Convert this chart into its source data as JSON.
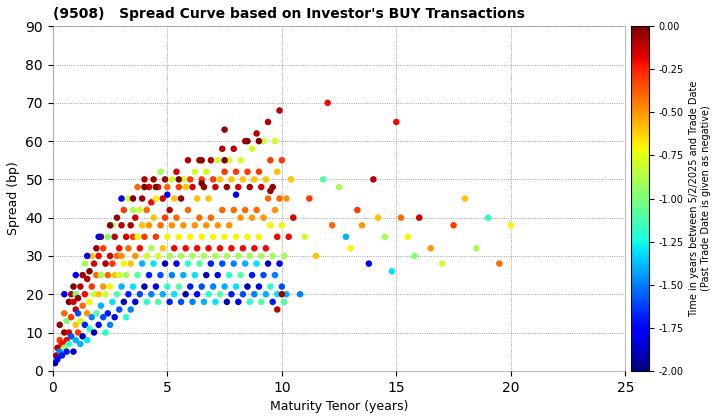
{
  "title": "(9508)   Spread Curve based on Investor's BUY Transactions",
  "xlabel": "Maturity Tenor (years)",
  "ylabel": "Spread (bp)",
  "xlim": [
    0,
    25
  ],
  "ylim": [
    0,
    90
  ],
  "xticks": [
    0,
    5,
    10,
    15,
    20,
    25
  ],
  "yticks": [
    0,
    10,
    20,
    30,
    40,
    50,
    60,
    70,
    80,
    90
  ],
  "colorbar_label_line1": "Time in years between 5/2/2025 and Trade Date",
  "colorbar_label_line2": "(Past Trade Date is given as negative)",
  "colorbar_ticks": [
    0.0,
    -0.25,
    -0.5,
    -0.75,
    -1.0,
    -1.25,
    -1.5,
    -1.75,
    -2.0
  ],
  "cmap": "jet",
  "vmin": -2.0,
  "vmax": 0.0,
  "marker_size": 22,
  "background_color": "#ffffff",
  "grid_color": "#888888",
  "points": [
    [
      0.1,
      2,
      -1.9
    ],
    [
      0.15,
      4,
      -0.05
    ],
    [
      0.2,
      3,
      -1.8
    ],
    [
      0.2,
      6,
      -0.1
    ],
    [
      0.3,
      5,
      -1.5
    ],
    [
      0.3,
      8,
      -0.3
    ],
    [
      0.3,
      12,
      -0.05
    ],
    [
      0.4,
      4,
      -1.7
    ],
    [
      0.4,
      7,
      -0.2
    ],
    [
      0.5,
      6,
      -0.9
    ],
    [
      0.5,
      10,
      -0.05
    ],
    [
      0.5,
      15,
      -0.4
    ],
    [
      0.6,
      5,
      -1.7
    ],
    [
      0.6,
      8,
      -0.2
    ],
    [
      0.6,
      13,
      -1.0
    ],
    [
      0.7,
      10,
      -0.15
    ],
    [
      0.7,
      18,
      -0.0
    ],
    [
      0.7,
      7,
      -1.2
    ],
    [
      0.8,
      14,
      -0.3
    ],
    [
      0.8,
      20,
      -0.1
    ],
    [
      0.8,
      9,
      -1.6
    ],
    [
      0.9,
      5,
      -1.9
    ],
    [
      0.9,
      18,
      -0.15
    ],
    [
      0.9,
      22,
      -0.0
    ],
    [
      1.0,
      8,
      -1.4
    ],
    [
      1.0,
      12,
      -0.6
    ],
    [
      1.0,
      16,
      -0.1
    ],
    [
      1.0,
      20,
      -1.0
    ],
    [
      1.1,
      10,
      -0.3
    ],
    [
      1.1,
      15,
      -1.6
    ],
    [
      1.1,
      19,
      -0.05
    ],
    [
      1.2,
      7,
      -1.4
    ],
    [
      1.2,
      13,
      -0.8
    ],
    [
      1.2,
      22,
      -0.1
    ],
    [
      1.3,
      9,
      -1.9
    ],
    [
      1.3,
      17,
      -0.4
    ],
    [
      1.3,
      25,
      -0.05
    ],
    [
      1.4,
      12,
      -1.7
    ],
    [
      1.4,
      20,
      -0.2
    ],
    [
      1.4,
      28,
      -0.9
    ],
    [
      1.5,
      8,
      -1.3
    ],
    [
      1.5,
      15,
      -0.5
    ],
    [
      1.5,
      24,
      -0.1
    ],
    [
      1.6,
      11,
      -1.2
    ],
    [
      1.6,
      18,
      -0.7
    ],
    [
      1.6,
      26,
      -0.0
    ],
    [
      1.7,
      14,
      -1.5
    ],
    [
      1.7,
      22,
      -0.3
    ],
    [
      1.7,
      30,
      -0.6
    ],
    [
      1.8,
      10,
      -1.9
    ],
    [
      1.8,
      20,
      -0.8
    ],
    [
      1.8,
      28,
      -0.15
    ],
    [
      1.9,
      15,
      -1.1
    ],
    [
      1.9,
      25,
      -0.4
    ],
    [
      1.9,
      32,
      -0.05
    ],
    [
      2.0,
      12,
      -1.8
    ],
    [
      2.0,
      20,
      -0.6
    ],
    [
      2.0,
      30,
      -0.2
    ],
    [
      2.1,
      17,
      -1.4
    ],
    [
      2.1,
      25,
      -0.9
    ],
    [
      2.1,
      35,
      -0.0
    ],
    [
      2.2,
      14,
      -1.6
    ],
    [
      2.2,
      22,
      -0.5
    ],
    [
      2.2,
      32,
      -0.3
    ],
    [
      2.3,
      10,
      -1.2
    ],
    [
      2.3,
      20,
      -0.8
    ],
    [
      2.3,
      28,
      -0.1
    ],
    [
      2.4,
      15,
      -1.7
    ],
    [
      2.4,
      25,
      -0.4
    ],
    [
      2.4,
      35,
      -1.0
    ],
    [
      2.5,
      12,
      -1.5
    ],
    [
      2.5,
      22,
      -0.7
    ],
    [
      2.5,
      30,
      -0.15
    ],
    [
      2.6,
      18,
      -1.3
    ],
    [
      2.6,
      28,
      -0.3
    ],
    [
      2.6,
      38,
      -0.9
    ],
    [
      2.7,
      14,
      -1.8
    ],
    [
      2.7,
      25,
      -0.6
    ],
    [
      2.7,
      35,
      -0.1
    ],
    [
      2.8,
      20,
      -1.1
    ],
    [
      2.8,
      30,
      -0.4
    ],
    [
      2.8,
      40,
      -0.05
    ],
    [
      2.9,
      16,
      -1.6
    ],
    [
      2.9,
      25,
      -0.8
    ],
    [
      2.9,
      32,
      -0.2
    ],
    [
      3.0,
      22,
      -1.4
    ],
    [
      3.0,
      30,
      -0.5
    ],
    [
      3.0,
      38,
      -0.1
    ],
    [
      3.1,
      18,
      -1.9
    ],
    [
      3.1,
      28,
      -0.7
    ],
    [
      3.1,
      42,
      -0.3
    ],
    [
      3.2,
      14,
      -1.2
    ],
    [
      3.2,
      25,
      -0.9
    ],
    [
      3.2,
      35,
      -0.15
    ],
    [
      3.3,
      20,
      -1.7
    ],
    [
      3.3,
      32,
      -0.4
    ],
    [
      3.3,
      45,
      -0.8
    ],
    [
      3.4,
      16,
      -1.5
    ],
    [
      3.4,
      28,
      -0.6
    ],
    [
      3.4,
      38,
      -0.1
    ],
    [
      3.5,
      22,
      -1.3
    ],
    [
      3.5,
      35,
      -0.3
    ],
    [
      3.5,
      42,
      -0.9
    ],
    [
      3.6,
      18,
      -1.8
    ],
    [
      3.6,
      30,
      -0.5
    ],
    [
      3.6,
      40,
      -0.15
    ],
    [
      3.7,
      25,
      -1.1
    ],
    [
      3.7,
      35,
      -0.7
    ],
    [
      3.7,
      48,
      -0.4
    ],
    [
      3.8,
      20,
      -1.6
    ],
    [
      3.8,
      32,
      -0.2
    ],
    [
      3.8,
      42,
      -0.8
    ],
    [
      3.9,
      28,
      -1.4
    ],
    [
      3.9,
      38,
      -0.6
    ],
    [
      3.9,
      45,
      -0.05
    ],
    [
      4.0,
      22,
      -1.9
    ],
    [
      4.0,
      35,
      -0.3
    ],
    [
      4.0,
      50,
      -0.1
    ],
    [
      4.1,
      18,
      -1.2
    ],
    [
      4.1,
      30,
      -0.8
    ],
    [
      4.1,
      42,
      -0.4
    ],
    [
      4.2,
      25,
      -1.7
    ],
    [
      4.2,
      38,
      -0.5
    ],
    [
      4.2,
      48,
      -0.15
    ],
    [
      4.3,
      20,
      -1.5
    ],
    [
      4.3,
      32,
      -0.9
    ],
    [
      4.3,
      44,
      -0.2
    ],
    [
      4.4,
      28,
      -1.3
    ],
    [
      4.4,
      40,
      -0.6
    ],
    [
      4.4,
      50,
      -0.05
    ],
    [
      4.5,
      22,
      -1.8
    ],
    [
      4.5,
      35,
      -0.3
    ],
    [
      4.5,
      45,
      -0.7
    ],
    [
      4.6,
      18,
      -1.1
    ],
    [
      4.6,
      30,
      -0.8
    ],
    [
      4.6,
      48,
      -0.2
    ],
    [
      4.7,
      25,
      -1.6
    ],
    [
      4.7,
      38,
      -0.4
    ],
    [
      4.7,
      52,
      -0.9
    ],
    [
      4.8,
      20,
      -1.4
    ],
    [
      4.8,
      32,
      -0.6
    ],
    [
      4.8,
      45,
      -0.15
    ],
    [
      4.9,
      28,
      -1.9
    ],
    [
      4.9,
      40,
      -0.3
    ],
    [
      4.9,
      50,
      -0.05
    ],
    [
      5.0,
      22,
      -1.2
    ],
    [
      5.0,
      35,
      -0.7
    ],
    [
      5.0,
      48,
      -0.4
    ],
    [
      5.1,
      18,
      -1.7
    ],
    [
      5.1,
      30,
      -0.9
    ],
    [
      5.1,
      42,
      -0.1
    ],
    [
      5.2,
      25,
      -1.5
    ],
    [
      5.2,
      38,
      -0.5
    ],
    [
      5.2,
      50,
      -0.8
    ],
    [
      5.3,
      20,
      -1.3
    ],
    [
      5.3,
      32,
      -0.2
    ],
    [
      5.3,
      45,
      -0.6
    ],
    [
      5.4,
      28,
      -1.8
    ],
    [
      5.4,
      40,
      -0.4
    ],
    [
      5.4,
      52,
      -0.15
    ],
    [
      5.5,
      22,
      -1.1
    ],
    [
      5.5,
      35,
      -0.7
    ],
    [
      5.5,
      48,
      -0.3
    ],
    [
      5.6,
      18,
      -1.6
    ],
    [
      5.6,
      30,
      -0.9
    ],
    [
      5.6,
      45,
      -0.05
    ],
    [
      5.7,
      25,
      -1.4
    ],
    [
      5.7,
      38,
      -0.5
    ],
    [
      5.7,
      50,
      -0.8
    ],
    [
      5.8,
      20,
      -1.9
    ],
    [
      5.8,
      32,
      -0.2
    ],
    [
      5.8,
      48,
      -0.6
    ],
    [
      5.9,
      28,
      -1.2
    ],
    [
      5.9,
      42,
      -0.4
    ],
    [
      5.9,
      55,
      -0.1
    ],
    [
      6.0,
      22,
      -1.7
    ],
    [
      6.0,
      35,
      -0.7
    ],
    [
      6.0,
      50,
      -0.3
    ],
    [
      6.1,
      18,
      -1.5
    ],
    [
      6.1,
      30,
      -0.9
    ],
    [
      6.1,
      48,
      -0.15
    ],
    [
      6.2,
      25,
      -1.3
    ],
    [
      6.2,
      38,
      -0.5
    ],
    [
      6.2,
      52,
      -0.8
    ],
    [
      6.3,
      20,
      -1.8
    ],
    [
      6.3,
      32,
      -0.2
    ],
    [
      6.3,
      45,
      -0.6
    ],
    [
      6.4,
      28,
      -1.1
    ],
    [
      6.4,
      40,
      -0.4
    ],
    [
      6.4,
      55,
      -0.1
    ],
    [
      6.5,
      22,
      -1.6
    ],
    [
      6.5,
      35,
      -0.7
    ],
    [
      6.5,
      50,
      -0.3
    ],
    [
      6.6,
      18,
      -1.4
    ],
    [
      6.6,
      30,
      -0.9
    ],
    [
      6.6,
      48,
      -0.05
    ],
    [
      6.7,
      25,
      -1.9
    ],
    [
      6.7,
      38,
      -0.5
    ],
    [
      6.7,
      52,
      -0.8
    ],
    [
      6.8,
      20,
      -1.2
    ],
    [
      6.8,
      32,
      -0.2
    ],
    [
      6.8,
      45,
      -0.6
    ],
    [
      6.9,
      28,
      -1.7
    ],
    [
      6.9,
      40,
      -0.4
    ],
    [
      6.9,
      55,
      -0.1
    ],
    [
      7.0,
      22,
      -1.5
    ],
    [
      7.0,
      35,
      -0.7
    ],
    [
      7.0,
      50,
      -0.3
    ],
    [
      7.1,
      18,
      -1.3
    ],
    [
      7.1,
      30,
      -0.9
    ],
    [
      7.1,
      48,
      -0.15
    ],
    [
      7.2,
      25,
      -1.8
    ],
    [
      7.2,
      38,
      -0.5
    ],
    [
      7.2,
      55,
      -0.8
    ],
    [
      7.3,
      20,
      -1.1
    ],
    [
      7.3,
      32,
      -0.2
    ],
    [
      7.3,
      50,
      -0.6
    ],
    [
      7.4,
      28,
      -1.6
    ],
    [
      7.4,
      42,
      -0.4
    ],
    [
      7.4,
      58,
      -0.1
    ],
    [
      7.5,
      22,
      -1.4
    ],
    [
      7.5,
      35,
      -0.7
    ],
    [
      7.5,
      52,
      -0.3
    ],
    [
      7.6,
      18,
      -1.9
    ],
    [
      7.6,
      30,
      -0.9
    ],
    [
      7.6,
      48,
      -0.05
    ],
    [
      7.7,
      25,
      -1.2
    ],
    [
      7.7,
      38,
      -0.5
    ],
    [
      7.7,
      55,
      -0.8
    ],
    [
      7.8,
      20,
      -1.7
    ],
    [
      7.8,
      32,
      -0.2
    ],
    [
      7.8,
      50,
      -0.6
    ],
    [
      7.9,
      28,
      -1.5
    ],
    [
      7.9,
      42,
      -0.4
    ],
    [
      7.9,
      58,
      -0.1
    ],
    [
      8.0,
      22,
      -1.3
    ],
    [
      8.0,
      35,
      -0.7
    ],
    [
      8.0,
      52,
      -0.3
    ],
    [
      8.1,
      18,
      -1.8
    ],
    [
      8.1,
      30,
      -0.9
    ],
    [
      8.1,
      48,
      -0.15
    ],
    [
      8.2,
      25,
      -1.1
    ],
    [
      8.2,
      40,
      -0.5
    ],
    [
      8.2,
      55,
      -0.8
    ],
    [
      8.3,
      20,
      -1.6
    ],
    [
      8.3,
      32,
      -0.2
    ],
    [
      8.3,
      50,
      -0.6
    ],
    [
      8.4,
      28,
      -1.4
    ],
    [
      8.4,
      42,
      -0.4
    ],
    [
      8.4,
      60,
      -0.1
    ],
    [
      8.5,
      22,
      -1.9
    ],
    [
      8.5,
      35,
      -0.7
    ],
    [
      8.5,
      52,
      -0.3
    ],
    [
      8.6,
      18,
      -1.2
    ],
    [
      8.6,
      30,
      -0.9
    ],
    [
      8.6,
      48,
      -0.05
    ],
    [
      8.7,
      25,
      -1.7
    ],
    [
      8.7,
      40,
      -0.5
    ],
    [
      8.7,
      58,
      -0.8
    ],
    [
      8.8,
      20,
      -1.5
    ],
    [
      8.8,
      32,
      -0.2
    ],
    [
      8.8,
      50,
      -0.6
    ],
    [
      8.9,
      28,
      -1.3
    ],
    [
      8.9,
      42,
      -0.4
    ],
    [
      8.9,
      62,
      -0.1
    ],
    [
      9.0,
      22,
      -1.8
    ],
    [
      9.0,
      35,
      -0.7
    ],
    [
      9.0,
      52,
      -0.3
    ],
    [
      9.1,
      18,
      -1.1
    ],
    [
      9.1,
      30,
      -0.9
    ],
    [
      9.1,
      48,
      -0.15
    ],
    [
      9.2,
      25,
      -1.6
    ],
    [
      9.2,
      40,
      -0.5
    ],
    [
      9.2,
      60,
      -0.8
    ],
    [
      9.3,
      20,
      -1.4
    ],
    [
      9.3,
      32,
      -0.2
    ],
    [
      9.3,
      50,
      -0.6
    ],
    [
      9.4,
      28,
      -1.9
    ],
    [
      9.4,
      45,
      -0.4
    ],
    [
      9.4,
      65,
      -0.1
    ],
    [
      9.5,
      22,
      -1.2
    ],
    [
      9.5,
      38,
      -0.7
    ],
    [
      9.5,
      55,
      -0.3
    ],
    [
      9.6,
      18,
      -1.7
    ],
    [
      9.6,
      30,
      -0.9
    ],
    [
      9.6,
      48,
      -0.05
    ],
    [
      9.7,
      25,
      -1.5
    ],
    [
      9.7,
      42,
      -0.5
    ],
    [
      9.7,
      60,
      -0.8
    ],
    [
      9.8,
      20,
      -1.3
    ],
    [
      9.8,
      35,
      -0.2
    ],
    [
      9.8,
      52,
      -0.6
    ],
    [
      9.9,
      28,
      -1.8
    ],
    [
      9.9,
      45,
      -0.4
    ],
    [
      9.9,
      68,
      -0.1
    ],
    [
      10.0,
      22,
      -1.6
    ],
    [
      10.0,
      38,
      -0.7
    ],
    [
      10.0,
      55,
      -0.3
    ],
    [
      10.1,
      18,
      -1.1
    ],
    [
      10.1,
      30,
      -0.9
    ],
    [
      10.2,
      45,
      -0.5
    ],
    [
      10.2,
      20,
      -1.4
    ],
    [
      10.3,
      35,
      -0.2
    ],
    [
      10.4,
      50,
      -0.6
    ],
    [
      10.5,
      40,
      -0.15
    ],
    [
      10.8,
      20,
      -1.5
    ],
    [
      11.0,
      35,
      -0.8
    ],
    [
      11.2,
      45,
      -0.3
    ],
    [
      11.5,
      30,
      -0.6
    ],
    [
      11.8,
      50,
      -1.1
    ],
    [
      12.0,
      70,
      -0.2
    ],
    [
      12.2,
      38,
      -0.4
    ],
    [
      12.5,
      48,
      -0.9
    ],
    [
      12.8,
      35,
      -1.4
    ],
    [
      13.0,
      32,
      -0.7
    ],
    [
      13.3,
      42,
      -0.3
    ],
    [
      13.5,
      38,
      -0.5
    ],
    [
      13.8,
      28,
      -1.8
    ],
    [
      14.0,
      50,
      -0.1
    ],
    [
      14.2,
      40,
      -0.6
    ],
    [
      14.5,
      35,
      -0.9
    ],
    [
      14.8,
      26,
      -1.3
    ],
    [
      15.0,
      65,
      -0.2
    ],
    [
      15.2,
      40,
      -0.4
    ],
    [
      15.5,
      35,
      -0.7
    ],
    [
      15.8,
      30,
      -1.0
    ],
    [
      16.0,
      40,
      -0.15
    ],
    [
      16.5,
      32,
      -0.5
    ],
    [
      17.0,
      28,
      -0.8
    ],
    [
      17.5,
      38,
      -0.3
    ],
    [
      18.0,
      45,
      -0.6
    ],
    [
      18.5,
      32,
      -0.9
    ],
    [
      19.0,
      40,
      -1.2
    ],
    [
      19.5,
      28,
      -0.4
    ],
    [
      20.0,
      38,
      -0.7
    ],
    [
      9.8,
      16,
      -0.1
    ],
    [
      10.0,
      20,
      -0.05
    ],
    [
      9.5,
      47,
      -0.05
    ],
    [
      8.0,
      46,
      -1.8
    ],
    [
      7.5,
      63,
      -0.05
    ],
    [
      6.5,
      49,
      -0.0
    ],
    [
      5.0,
      46,
      -1.8
    ],
    [
      4.0,
      48,
      -0.0
    ],
    [
      3.0,
      45,
      -1.8
    ],
    [
      2.0,
      35,
      -1.8
    ],
    [
      1.5,
      30,
      -1.8
    ],
    [
      1.0,
      25,
      -1.8
    ],
    [
      0.5,
      20,
      -1.8
    ],
    [
      9.0,
      60,
      -0.0
    ],
    [
      8.5,
      60,
      -0.0
    ],
    [
      7.5,
      55,
      -0.0
    ],
    [
      6.5,
      55,
      -0.0
    ],
    [
      5.5,
      50,
      -0.0
    ],
    [
      4.5,
      48,
      -0.0
    ],
    [
      3.5,
      45,
      -0.0
    ],
    [
      2.5,
      38,
      -0.0
    ]
  ]
}
